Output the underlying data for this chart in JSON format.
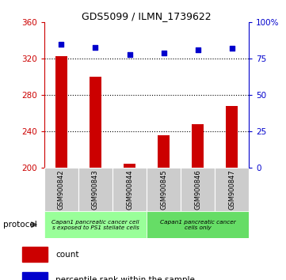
{
  "title": "GDS5099 / ILMN_1739622",
  "samples": [
    "GSM900842",
    "GSM900843",
    "GSM900844",
    "GSM900845",
    "GSM900846",
    "GSM900847"
  ],
  "counts": [
    323,
    300,
    205,
    236,
    248,
    268
  ],
  "percentile_ranks": [
    85,
    83,
    78,
    79,
    81,
    82
  ],
  "ylim_left": [
    200,
    360
  ],
  "yticks_left": [
    200,
    240,
    280,
    320,
    360
  ],
  "ylim_right": [
    0,
    100
  ],
  "yticks_right": [
    0,
    25,
    50,
    75,
    100
  ],
  "bar_color": "#cc0000",
  "dot_color": "#0000cc",
  "left_axis_color": "#cc0000",
  "right_axis_color": "#0000cc",
  "background_color": "#ffffff",
  "tick_label_area_color": "#cccccc",
  "proto_color_1": "#99ff99",
  "proto_color_2": "#66dd66",
  "proto_label_1": "Capan1 pancreatic cancer cell\ns exposed to PS1 stellate cells",
  "proto_label_2": "Capan1 pancreatic cancer\ncells only",
  "protocol_label": "protocol"
}
